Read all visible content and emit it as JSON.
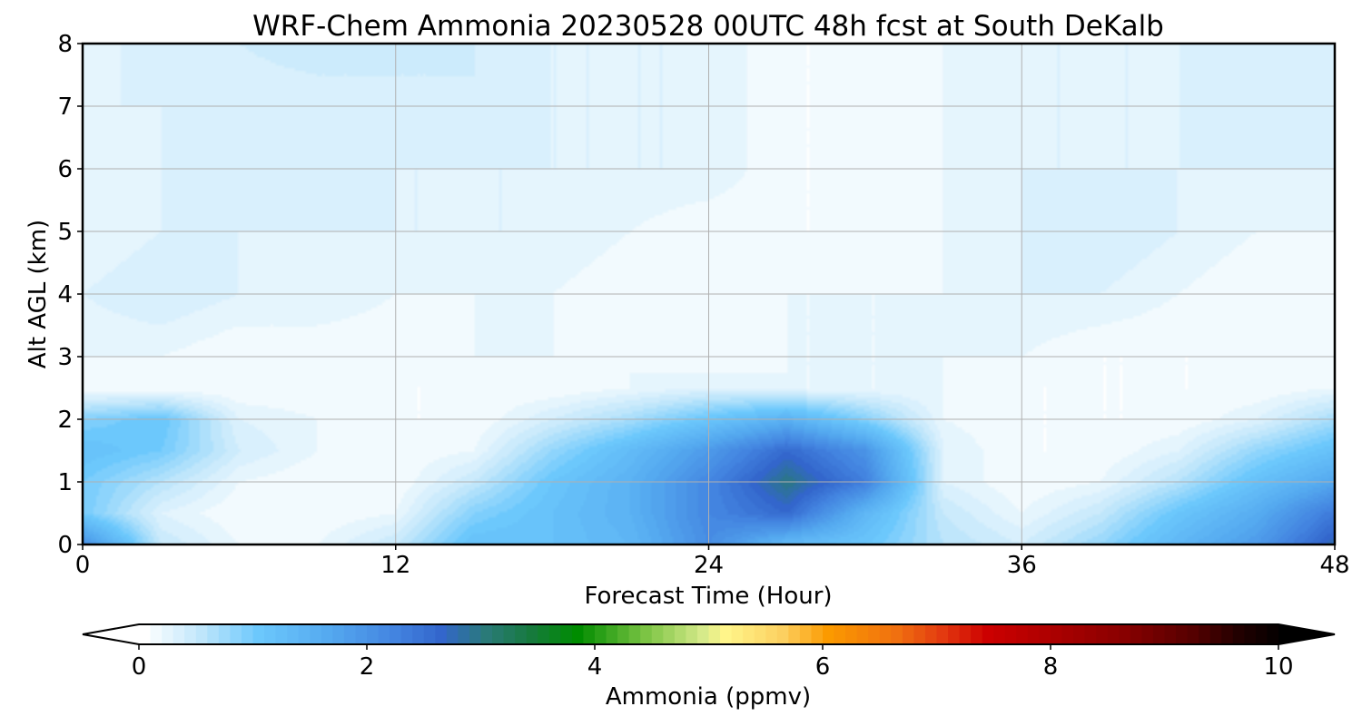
{
  "chart_data": {
    "type": "heatmap",
    "title": "WRF-Chem Ammonia  20230528 00UTC 48h fcst at South DeKalb",
    "xlabel": "Forecast Time (Hour)",
    "ylabel": "Alt AGL (km)",
    "xlim": [
      0,
      48
    ],
    "ylim": [
      0,
      8
    ],
    "xticks": [
      0,
      12,
      24,
      36,
      48
    ],
    "yticks": [
      0,
      1,
      2,
      3,
      4,
      5,
      6,
      7,
      8
    ],
    "grid": true,
    "x": [
      0,
      3,
      6,
      9,
      12,
      15,
      18,
      21,
      24,
      27,
      30,
      33,
      36,
      39,
      42,
      45,
      48
    ],
    "y": [
      0,
      0.5,
      1,
      1.5,
      2,
      2.5,
      3,
      4,
      5,
      6,
      7,
      8
    ],
    "z": [
      [
        2.1,
        0.5,
        0.2,
        0.2,
        0.5,
        1.2,
        1.2,
        1.4,
        2.1,
        1.3,
        1.1,
        0.6,
        0.4,
        0.8,
        1.4,
        1.9,
        2.8
      ],
      [
        1.0,
        0.3,
        0.1,
        0.1,
        0.2,
        0.9,
        1.2,
        1.5,
        2.2,
        2.6,
        1.4,
        0.5,
        0.2,
        0.5,
        1.1,
        1.6,
        2.4
      ],
      [
        1.0,
        0.6,
        0.2,
        0.1,
        0.1,
        0.5,
        1.1,
        1.5,
        2.2,
        3.0,
        2.3,
        0.3,
        0.1,
        0.2,
        0.6,
        1.2,
        1.7
      ],
      [
        1.2,
        1.0,
        0.4,
        0.2,
        0.1,
        0.2,
        0.8,
        1.3,
        1.9,
        2.6,
        2.0,
        0.3,
        0.1,
        0.1,
        0.3,
        0.8,
        1.2
      ],
      [
        0.9,
        1.1,
        0.3,
        0.2,
        0.1,
        0.1,
        0.4,
        0.7,
        1.1,
        1.5,
        0.9,
        0.2,
        0.1,
        0.1,
        0.1,
        0.3,
        0.7
      ],
      [
        0.1,
        0.1,
        0.1,
        0.1,
        0.1,
        0.1,
        0.1,
        0.2,
        0.3,
        0.2,
        0.2,
        0.2,
        0.1,
        0.1,
        0.1,
        0.1,
        0.2
      ],
      [
        0.2,
        0.2,
        0.1,
        0.1,
        0.1,
        0.2,
        0.2,
        0.2,
        0.1,
        0.2,
        0.2,
        0.2,
        0.2,
        0.1,
        0.1,
        0.1,
        0.1
      ],
      [
        0.3,
        0.4,
        0.3,
        0.3,
        0.2,
        0.2,
        0.2,
        0.1,
        0.1,
        0.2,
        0.2,
        0.2,
        0.3,
        0.3,
        0.2,
        0.1,
        0.1
      ],
      [
        0.2,
        0.3,
        0.3,
        0.3,
        0.3,
        0.3,
        0.3,
        0.2,
        0.1,
        0.1,
        0.1,
        0.2,
        0.3,
        0.4,
        0.3,
        0.2,
        0.2
      ],
      [
        0.2,
        0.3,
        0.4,
        0.4,
        0.3,
        0.3,
        0.3,
        0.3,
        0.3,
        0.1,
        0.1,
        0.2,
        0.3,
        0.3,
        0.3,
        0.3,
        0.3
      ],
      [
        0.3,
        0.3,
        0.3,
        0.3,
        0.3,
        0.4,
        0.3,
        0.3,
        0.3,
        0.1,
        0.1,
        0.2,
        0.3,
        0.3,
        0.3,
        0.4,
        0.3
      ],
      [
        0.2,
        0.4,
        0.4,
        0.5,
        0.5,
        0.4,
        0.3,
        0.3,
        0.3,
        0.1,
        0.1,
        0.2,
        0.3,
        0.3,
        0.3,
        0.3,
        0.3
      ]
    ],
    "colorbar": {
      "label": "Ammonia  (ppmv)",
      "min": 0,
      "max": 10,
      "ticks": [
        0,
        2,
        4,
        6,
        8,
        10
      ],
      "extend": "both",
      "levels": 100,
      "stops": [
        [
          0,
          "#ffffff"
        ],
        [
          0.5,
          "#bfe6fb"
        ],
        [
          1.0,
          "#6cc8fc"
        ],
        [
          1.6,
          "#55aaf0"
        ],
        [
          2.2,
          "#4384e0"
        ],
        [
          2.6,
          "#3366cc"
        ],
        [
          3.0,
          "#2a7a78"
        ],
        [
          3.4,
          "#167a3c"
        ],
        [
          3.8,
          "#008c00"
        ],
        [
          4.4,
          "#7cc444"
        ],
        [
          4.9,
          "#d6ea8a"
        ],
        [
          5.1,
          "#fff58a"
        ],
        [
          5.6,
          "#fcd060"
        ],
        [
          6.0,
          "#fb9a00"
        ],
        [
          6.6,
          "#f07010"
        ],
        [
          7.0,
          "#e33a10"
        ],
        [
          7.4,
          "#cc0000"
        ],
        [
          8.0,
          "#aa0000"
        ],
        [
          8.6,
          "#880000"
        ],
        [
          9.2,
          "#550000"
        ],
        [
          9.6,
          "#220000"
        ],
        [
          10,
          "#000000"
        ]
      ]
    }
  }
}
